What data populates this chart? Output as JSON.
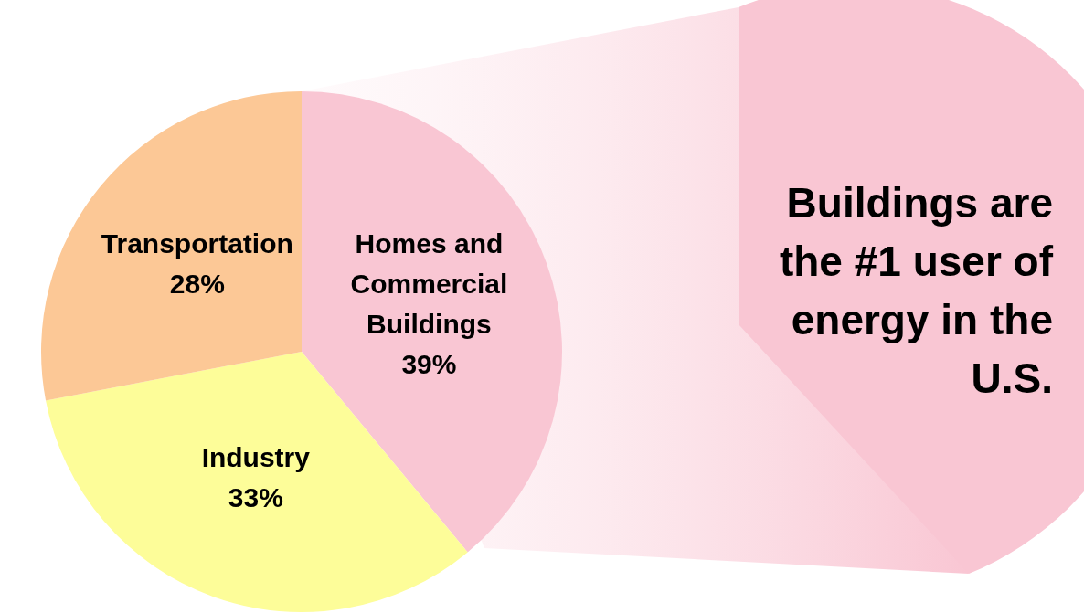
{
  "chart_data": {
    "type": "pie",
    "categories": [
      "Homes and Commercial Buildings",
      "Industry",
      "Transportation"
    ],
    "values": [
      39,
      33,
      28
    ],
    "colors": [
      "#f9c6d3",
      "#fdfd99",
      "#fcc896"
    ],
    "value_labels": [
      "39%",
      "33%",
      "28%"
    ],
    "legend": false,
    "annotations": [
      "Buildings are the #1 user of energy in the U.S."
    ]
  }
}
